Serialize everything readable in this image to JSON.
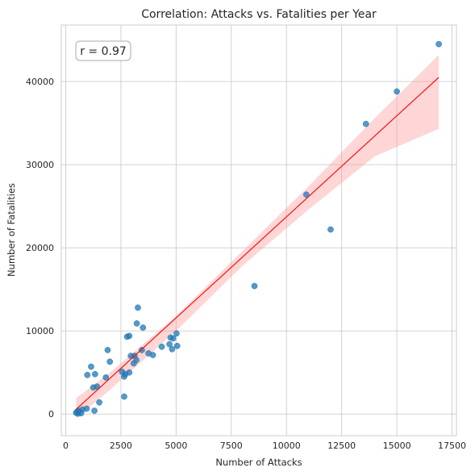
{
  "chart_data": {
    "type": "scatter",
    "title": "Correlation: Attacks vs. Fatalities per Year",
    "xlabel": "Number of Attacks",
    "ylabel": "Number of Fatalities",
    "xlim": [
      -200,
      17700
    ],
    "ylim": [
      -2600,
      46800
    ],
    "x_ticks": [
      0,
      2500,
      5000,
      7500,
      10000,
      12500,
      15000,
      17500
    ],
    "x_tick_labels": [
      "0",
      "2500",
      "5000",
      "7500",
      "10000",
      "12500",
      "15000",
      "17500"
    ],
    "y_ticks": [
      0,
      10000,
      20000,
      30000,
      40000
    ],
    "y_tick_labels": [
      "0",
      "10000",
      "20000",
      "30000",
      "40000"
    ],
    "grid": true,
    "annotation": "r = 0.97",
    "annotation_position": "top-left",
    "point_color": "#1f77b4",
    "fit_color": "#ff0000",
    "band_color": "#ff9999",
    "points": [
      {
        "x": 470,
        "y": 150
      },
      {
        "x": 520,
        "y": 300
      },
      {
        "x": 560,
        "y": 50
      },
      {
        "x": 600,
        "y": 400
      },
      {
        "x": 700,
        "y": 100
      },
      {
        "x": 760,
        "y": 550
      },
      {
        "x": 950,
        "y": 650
      },
      {
        "x": 980,
        "y": 4700
      },
      {
        "x": 1150,
        "y": 5700
      },
      {
        "x": 1250,
        "y": 3200
      },
      {
        "x": 1300,
        "y": 400
      },
      {
        "x": 1330,
        "y": 4800
      },
      {
        "x": 1420,
        "y": 3300
      },
      {
        "x": 1520,
        "y": 1400
      },
      {
        "x": 1820,
        "y": 4400
      },
      {
        "x": 1900,
        "y": 7700
      },
      {
        "x": 2000,
        "y": 6300
      },
      {
        "x": 2550,
        "y": 5100
      },
      {
        "x": 2650,
        "y": 2100
      },
      {
        "x": 2650,
        "y": 4500
      },
      {
        "x": 2700,
        "y": 4800
      },
      {
        "x": 2780,
        "y": 9300
      },
      {
        "x": 2880,
        "y": 9400
      },
      {
        "x": 2880,
        "y": 5000
      },
      {
        "x": 2950,
        "y": 7000
      },
      {
        "x": 3080,
        "y": 6100
      },
      {
        "x": 3120,
        "y": 7000
      },
      {
        "x": 3200,
        "y": 6500
      },
      {
        "x": 3220,
        "y": 10900
      },
      {
        "x": 3270,
        "y": 12800
      },
      {
        "x": 3450,
        "y": 7700
      },
      {
        "x": 3500,
        "y": 10400
      },
      {
        "x": 3750,
        "y": 7300
      },
      {
        "x": 3950,
        "y": 7100
      },
      {
        "x": 4350,
        "y": 8100
      },
      {
        "x": 4700,
        "y": 8400
      },
      {
        "x": 4750,
        "y": 9200
      },
      {
        "x": 4820,
        "y": 7800
      },
      {
        "x": 4870,
        "y": 9100
      },
      {
        "x": 5020,
        "y": 9700
      },
      {
        "x": 5050,
        "y": 8200
      },
      {
        "x": 8550,
        "y": 15400
      },
      {
        "x": 10900,
        "y": 26400
      },
      {
        "x": 12000,
        "y": 22200
      },
      {
        "x": 13600,
        "y": 34900
      },
      {
        "x": 15000,
        "y": 38800
      },
      {
        "x": 16900,
        "y": 44500
      }
    ],
    "fit_line": {
      "x": [
        470,
        16900
      ],
      "y": [
        560,
        40500
      ]
    },
    "confidence_band": {
      "x": [
        470,
        2000,
        5000,
        8000,
        11000,
        14000,
        16900
      ],
      "upper": [
        1900,
        5000,
        11800,
        19600,
        27400,
        35600,
        43200
      ],
      "lower": [
        -500,
        2900,
        10000,
        17800,
        24600,
        31000,
        34300
      ]
    }
  }
}
